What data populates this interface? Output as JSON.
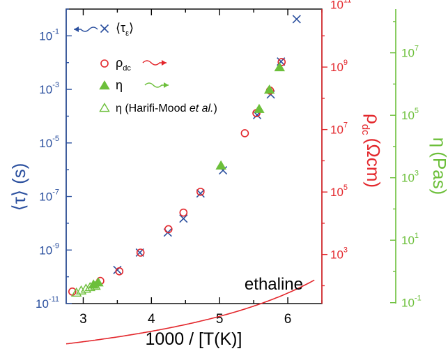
{
  "chart_data": {
    "type": "scatter",
    "annotation": "ethaline",
    "xlabel": "1000 / [T(K)]",
    "xlim": [
      2.75,
      6.5
    ],
    "x_ticks": [
      "3",
      "4",
      "5",
      "6"
    ],
    "y_left": {
      "label_prefix": "⟨τ⟩",
      "label_suffix": "(s)",
      "scale": "log",
      "lim": [
        1e-11,
        1.0
      ],
      "ticks": [
        {
          "base": "10",
          "exp": "-1"
        },
        {
          "base": "10",
          "exp": "-3"
        },
        {
          "base": "10",
          "exp": "-5"
        },
        {
          "base": "10",
          "exp": "-7"
        },
        {
          "base": "10",
          "exp": "-9"
        },
        {
          "base": "10",
          "exp": "-11"
        }
      ],
      "color": "#2a4f9e"
    },
    "y_right1": {
      "label_main": "ρ",
      "label_sub": "dc",
      "label_suffix": "(Ωcm)",
      "scale": "log",
      "ticks": [
        {
          "base": "10",
          "exp": "11"
        },
        {
          "base": "10",
          "exp": "9"
        },
        {
          "base": "10",
          "exp": "7"
        },
        {
          "base": "10",
          "exp": "5"
        },
        {
          "base": "10",
          "exp": "3"
        }
      ],
      "color": "#e3262b"
    },
    "y_right2": {
      "label_main": "η",
      "label_suffix": "(Pas)",
      "scale": "log",
      "ticks": [
        {
          "base": "10",
          "exp": "7"
        },
        {
          "base": "10",
          "exp": "5"
        },
        {
          "base": "10",
          "exp": "3"
        },
        {
          "base": "10",
          "exp": "1"
        },
        {
          "base": "10",
          "exp": "-1"
        }
      ],
      "color": "#6cbf3a"
    },
    "legend": [
      {
        "symbol": "×",
        "main": "⟨τ",
        "sub": "ε",
        "tail": "⟩",
        "color": "#2a4f9e"
      },
      {
        "symbol": "○",
        "main": "ρ",
        "sub": "dc",
        "tail": "",
        "color": "#e3262b"
      },
      {
        "symbol": "▲",
        "main": "η",
        "sub": "",
        "tail": "",
        "color": "#6cbf3a"
      },
      {
        "symbol": "△",
        "main": "η (Harifi-Mood ",
        "em": "et al.",
        "tail": ")",
        "color": "#6cbf3a"
      }
    ],
    "series": [
      {
        "marker": "cross",
        "color": "#2a4f9e",
        "x": [
          3.5,
          3.83,
          4.24,
          4.47,
          4.72,
          5.05,
          5.55,
          5.75,
          5.9,
          6.13
        ],
        "y": [
          1.8e-10,
          8e-10,
          4.5e-09,
          1.5e-08,
          1.3e-07,
          9.5e-07,
          0.00011,
          0.00065,
          0.011,
          0.42
        ]
      },
      {
        "marker": "circle",
        "color": "#e3262b",
        "x": [
          2.84,
          3.25,
          3.53,
          3.84,
          4.25,
          4.47,
          4.72,
          5.37,
          5.54,
          5.74,
          5.91
        ],
        "y": [
          2.8e-11,
          7e-11,
          1.6e-10,
          8e-10,
          6e-09,
          2.5e-08,
          1.5e-07,
          2.3e-05,
          0.00013,
          0.0009,
          0.0105
        ]
      },
      {
        "marker": "triangle-filled",
        "color": "#6cbf3a",
        "x": [
          3.15,
          3.22,
          5.02,
          5.58,
          5.73,
          5.88
        ],
        "y": [
          5e-11,
          6e-11,
          1.4e-06,
          0.00018,
          0.00095,
          0.0065
        ]
      },
      {
        "marker": "triangle-open",
        "color": "#6cbf3a",
        "x": [
          2.9,
          2.97,
          3.04,
          3.1,
          3.18
        ],
        "y": [
          2.5e-11,
          3e-11,
          3.5e-11,
          4e-11,
          4.5e-11
        ]
      }
    ]
  }
}
